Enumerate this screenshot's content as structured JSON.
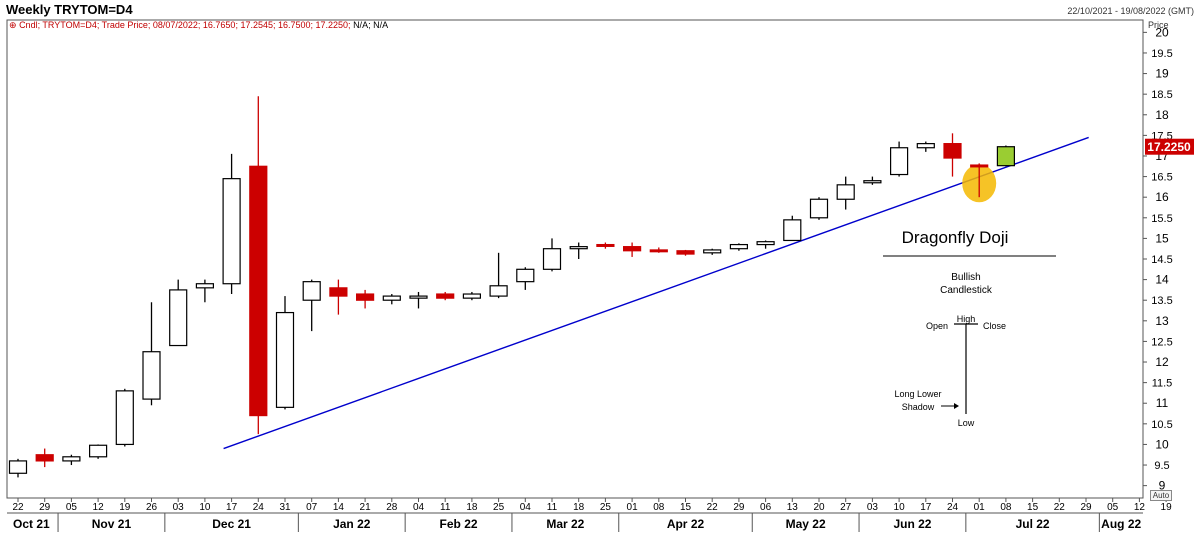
{
  "header": {
    "title": "Weekly TRYTOM=D4",
    "date_range": "22/10/2021 - 19/08/2022 (GMT)",
    "price_label": "Price",
    "legend_series": "Cndl; TRYTOM=D4; Trade Price; 08/07/2022; 16.7650; 17.2545; 16.7500; 17.2250;",
    "legend_na": "N/A; N/A",
    "auto_label": "Auto"
  },
  "colors": {
    "up_body": "#ffffff",
    "down_body": "#cc0000",
    "last_body": "#9acd32",
    "wick": "#000000",
    "trendline": "#0000cc",
    "highlight": "#f5b800",
    "price_tag": "#cc0000"
  },
  "chart_data": {
    "type": "candlestick",
    "title": "Weekly TRYTOM=D4",
    "ylim": [
      8.7,
      20.3
    ],
    "y_ticks": [
      9,
      9.5,
      10,
      10.5,
      11,
      11.5,
      12,
      12.5,
      13,
      13.5,
      14,
      14.5,
      15,
      15.5,
      16,
      16.5,
      17,
      17.5,
      18,
      18.5,
      19,
      19.5,
      20
    ],
    "x_week_labels": [
      "22",
      "29",
      "05",
      "12",
      "19",
      "26",
      "03",
      "10",
      "17",
      "24",
      "31",
      "07",
      "14",
      "21",
      "28",
      "04",
      "11",
      "18",
      "25",
      "04",
      "11",
      "18",
      "25",
      "01",
      "08",
      "15",
      "22",
      "29",
      "06",
      "13",
      "20",
      "27",
      "03",
      "10",
      "17",
      "24",
      "01",
      "08",
      "15",
      "22",
      "29",
      "05",
      "12",
      "19"
    ],
    "month_labels": [
      {
        "label": "Oct 21",
        "start": 0
      },
      {
        "label": "Nov 21",
        "start": 2
      },
      {
        "label": "Dec 21",
        "start": 6
      },
      {
        "label": "Jan 22",
        "start": 11
      },
      {
        "label": "Feb 22",
        "start": 15
      },
      {
        "label": "Mar 22",
        "start": 19
      },
      {
        "label": "Apr 22",
        "start": 23
      },
      {
        "label": "May 22",
        "start": 28
      },
      {
        "label": "Jun 22",
        "start": 32
      },
      {
        "label": "Jul 22",
        "start": 36
      },
      {
        "label": "Aug 22",
        "start": 41
      }
    ],
    "candles": [
      {
        "o": 9.3,
        "h": 9.65,
        "l": 9.2,
        "c": 9.6
      },
      {
        "o": 9.75,
        "h": 9.9,
        "l": 9.45,
        "c": 9.6
      },
      {
        "o": 9.6,
        "h": 9.75,
        "l": 9.5,
        "c": 9.7
      },
      {
        "o": 9.7,
        "h": 10.0,
        "l": 9.65,
        "c": 9.98
      },
      {
        "o": 10.0,
        "h": 11.35,
        "l": 9.95,
        "c": 11.3
      },
      {
        "o": 11.1,
        "h": 13.45,
        "l": 10.95,
        "c": 12.25
      },
      {
        "o": 12.4,
        "h": 14.0,
        "l": 12.4,
        "c": 13.75
      },
      {
        "o": 13.8,
        "h": 14.0,
        "l": 13.45,
        "c": 13.9
      },
      {
        "o": 13.9,
        "h": 17.05,
        "l": 13.65,
        "c": 16.45
      },
      {
        "o": 16.75,
        "h": 18.45,
        "l": 10.25,
        "c": 10.7
      },
      {
        "o": 10.9,
        "h": 13.6,
        "l": 10.85,
        "c": 13.2
      },
      {
        "o": 13.5,
        "h": 14.0,
        "l": 12.75,
        "c": 13.95
      },
      {
        "o": 13.8,
        "h": 14.0,
        "l": 13.15,
        "c": 13.6
      },
      {
        "o": 13.65,
        "h": 13.75,
        "l": 13.3,
        "c": 13.5
      },
      {
        "o": 13.5,
        "h": 13.65,
        "l": 13.4,
        "c": 13.6
      },
      {
        "o": 13.55,
        "h": 13.7,
        "l": 13.3,
        "c": 13.6
      },
      {
        "o": 13.65,
        "h": 13.7,
        "l": 13.5,
        "c": 13.55
      },
      {
        "o": 13.55,
        "h": 13.7,
        "l": 13.5,
        "c": 13.65
      },
      {
        "o": 13.6,
        "h": 14.65,
        "l": 13.55,
        "c": 13.85
      },
      {
        "o": 13.95,
        "h": 14.3,
        "l": 13.75,
        "c": 14.25
      },
      {
        "o": 14.25,
        "h": 15.0,
        "l": 14.2,
        "c": 14.75
      },
      {
        "o": 14.75,
        "h": 14.9,
        "l": 14.5,
        "c": 14.8
      },
      {
        "o": 14.85,
        "h": 14.9,
        "l": 14.75,
        "c": 14.82
      },
      {
        "o": 14.8,
        "h": 14.9,
        "l": 14.55,
        "c": 14.7
      },
      {
        "o": 14.72,
        "h": 14.78,
        "l": 14.65,
        "c": 14.7
      },
      {
        "o": 14.7,
        "h": 14.72,
        "l": 14.58,
        "c": 14.62
      },
      {
        "o": 14.65,
        "h": 14.75,
        "l": 14.6,
        "c": 14.72
      },
      {
        "o": 14.75,
        "h": 14.88,
        "l": 14.7,
        "c": 14.85
      },
      {
        "o": 14.85,
        "h": 14.95,
        "l": 14.75,
        "c": 14.92
      },
      {
        "o": 14.95,
        "h": 15.55,
        "l": 14.95,
        "c": 15.45
      },
      {
        "o": 15.5,
        "h": 16.0,
        "l": 15.45,
        "c": 15.95
      },
      {
        "o": 15.95,
        "h": 16.5,
        "l": 15.7,
        "c": 16.3
      },
      {
        "o": 16.35,
        "h": 16.5,
        "l": 16.3,
        "c": 16.4
      },
      {
        "o": 16.55,
        "h": 17.35,
        "l": 16.5,
        "c": 17.2
      },
      {
        "o": 17.2,
        "h": 17.35,
        "l": 17.1,
        "c": 17.3
      },
      {
        "o": 17.3,
        "h": 17.55,
        "l": 16.5,
        "c": 16.95
      },
      {
        "o": 16.78,
        "h": 16.82,
        "l": 16.0,
        "c": 16.77
      },
      {
        "o": 16.765,
        "h": 17.2545,
        "l": 16.75,
        "c": 17.225
      }
    ],
    "last_price": "17.2250",
    "trendline": {
      "from": {
        "week": 7.7,
        "price": 9.9
      },
      "to": {
        "week": 40.1,
        "price": 17.45
      }
    },
    "highlight_week": 36,
    "annotation": {
      "title": "Dragonfly Doji",
      "subtitle_line1": "Bullish",
      "subtitle_line2": "Candlestick",
      "open": "Open",
      "high": "High",
      "close": "Close",
      "long_lower_line1": "Long Lower",
      "long_lower_line2": "Shadow",
      "low": "Low"
    }
  }
}
